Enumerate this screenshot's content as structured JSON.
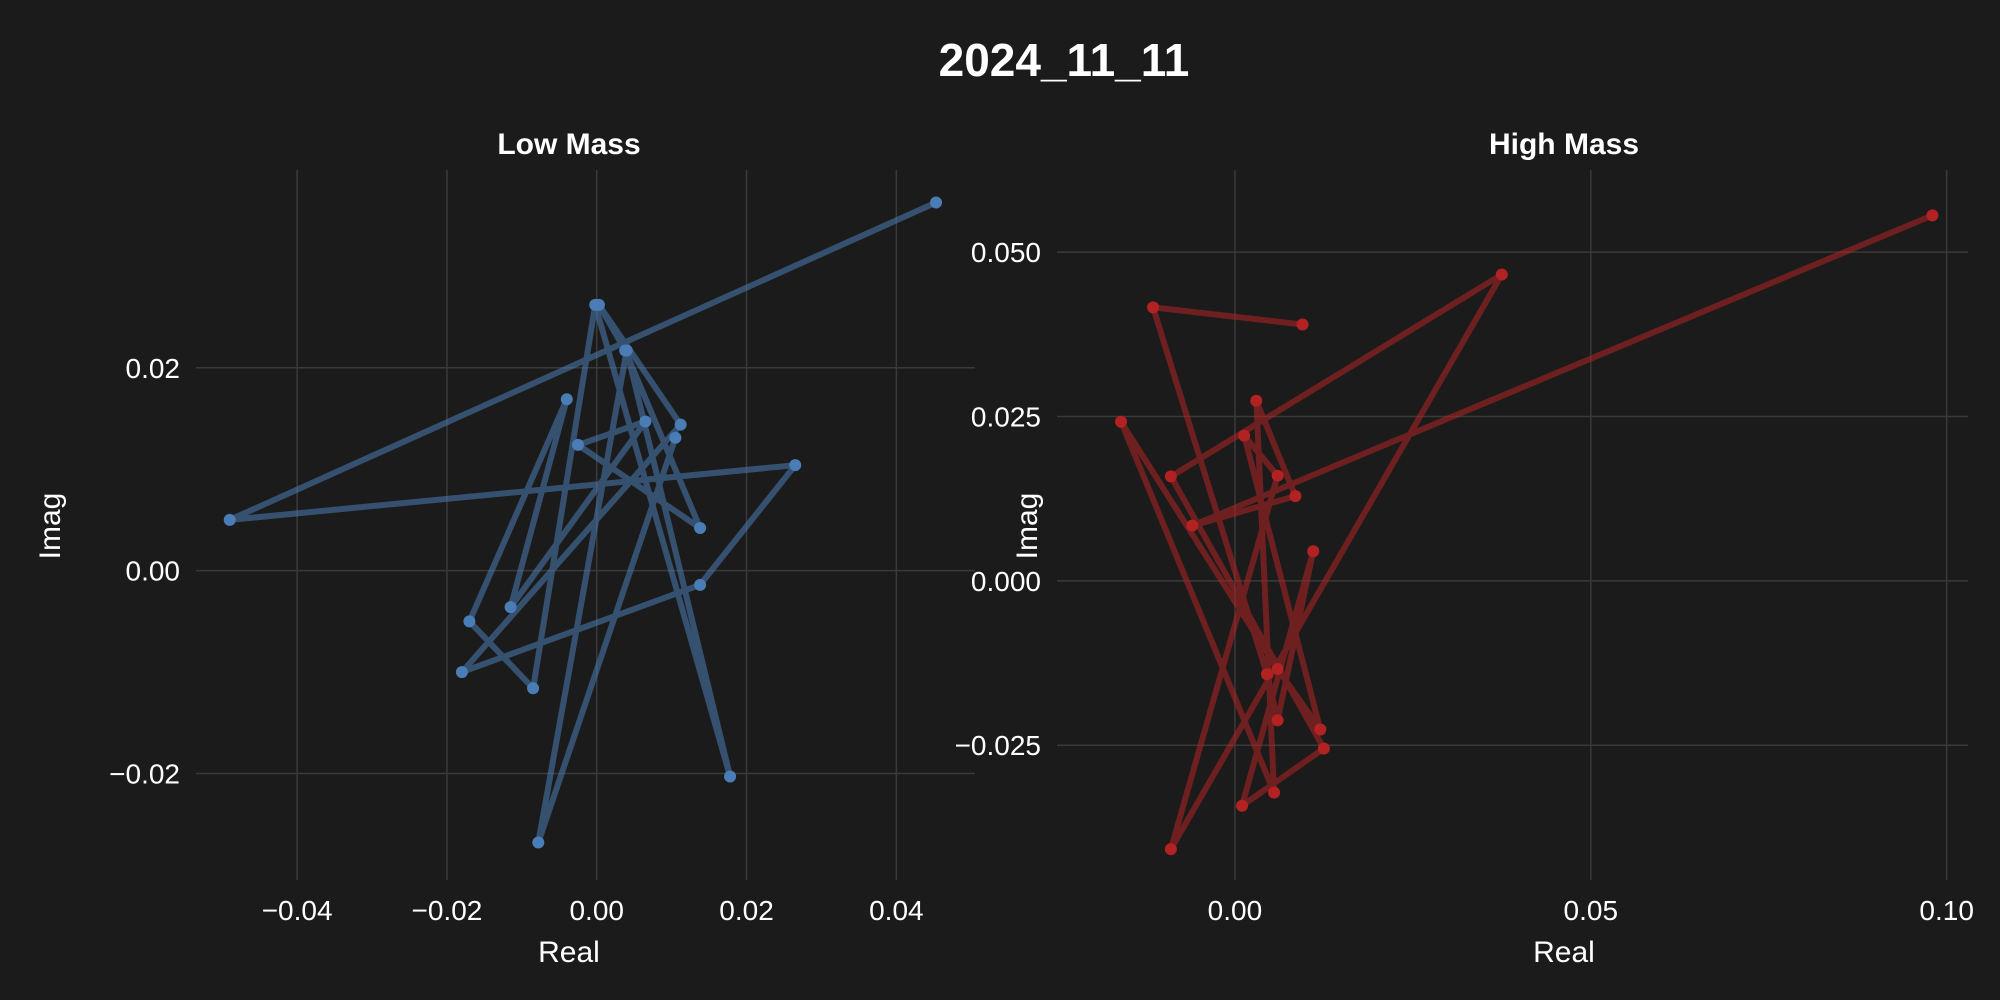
{
  "figure": {
    "title": "2024_11_11",
    "background": "#1b1b1b"
  },
  "chart_data": [
    {
      "type": "line",
      "title": "Low Mass",
      "xlabel": "Real",
      "ylabel": "Imag",
      "xlim": [
        -0.0535,
        0.0505
      ],
      "ylim": [
        -0.0305,
        0.0395
      ],
      "xticks": [
        -0.04,
        -0.02,
        0.0,
        0.02,
        0.04
      ],
      "xtick_labels": [
        "−0.04",
        "−0.02",
        "0.00",
        "0.02",
        "0.04"
      ],
      "yticks": [
        -0.02,
        0.0,
        0.02
      ],
      "ytick_labels": [
        "−0.02",
        "0.00",
        "0.02"
      ],
      "grid": true,
      "series": [
        {
          "color": "#4a7db5",
          "x": [
            0.0453,
            -0.049,
            0.0265,
            0.0138,
            -0.018,
            0.0112,
            0.0003,
            0.0038,
            0.0138,
            -0.0025,
            0.0065,
            -0.0115,
            -0.004,
            -0.017,
            -0.0085,
            -0.0002,
            0.0178,
            0.004,
            -0.0078,
            0.0105
          ],
          "y": [
            0.0363,
            0.005,
            0.0104,
            -0.0014,
            -0.01,
            0.0144,
            0.0262,
            0.0217,
            0.0042,
            0.0124,
            0.0147,
            -0.0036,
            0.0169,
            -0.005,
            -0.0116,
            0.0262,
            -0.0203,
            0.0217,
            -0.0268,
            0.0131
          ]
        }
      ]
    },
    {
      "type": "line",
      "title": "High Mass",
      "xlabel": "Real",
      "ylabel": "Imag",
      "xlim": [
        -0.025,
        0.103
      ],
      "ylim": [
        -0.0455,
        0.0625
      ],
      "xticks": [
        0.0,
        0.05,
        0.1
      ],
      "xtick_labels": [
        "0.00",
        "0.05",
        "0.10"
      ],
      "yticks": [
        -0.025,
        0.0,
        0.025,
        0.05
      ],
      "ytick_labels": [
        "−0.025",
        "0.000",
        "0.025",
        "0.050"
      ],
      "grid": true,
      "series": [
        {
          "color": "#b22222",
          "x": [
            0.098,
            -0.006,
            0.0085,
            0.003,
            0.0055,
            -0.016,
            0.006,
            0.012,
            0.0013,
            0.006,
            -0.009,
            0.0375,
            -0.009,
            0.0125,
            0.001,
            0.011,
            0.006,
            0.0045,
            -0.0115,
            0.0095
          ],
          "y": [
            0.0556,
            0.0084,
            0.0129,
            0.0274,
            -0.0322,
            0.0242,
            -0.0134,
            -0.0226,
            0.0221,
            0.016,
            -0.0408,
            0.0466,
            0.0159,
            -0.0255,
            -0.0342,
            0.0045,
            -0.0212,
            -0.0142,
            0.0416,
            0.039
          ]
        }
      ]
    }
  ]
}
